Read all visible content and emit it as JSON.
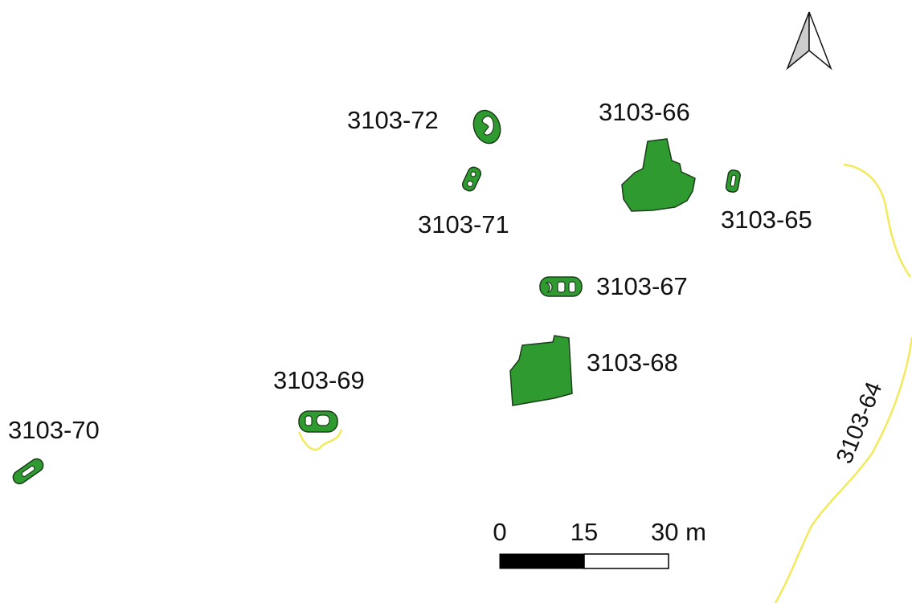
{
  "features": [
    {
      "label": "3103-72"
    },
    {
      "label": "3103-71"
    },
    {
      "label": "3103-66"
    },
    {
      "label": "3103-65"
    },
    {
      "label": "3103-67"
    },
    {
      "label": "3103-68"
    },
    {
      "label": "3103-69"
    },
    {
      "label": "3103-70"
    },
    {
      "label": "3103-64"
    }
  ],
  "scale_bar": {
    "labels": [
      "0",
      "15",
      "30 m"
    ]
  }
}
